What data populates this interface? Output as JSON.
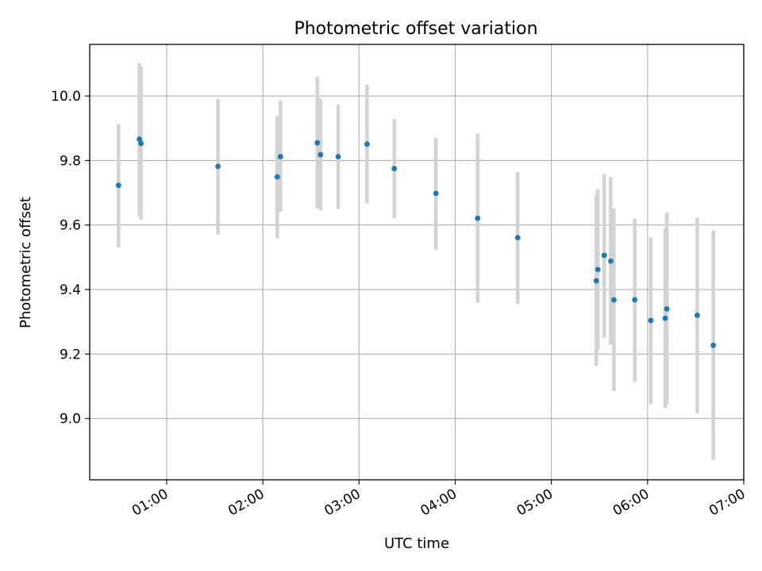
{
  "chart_data": {
    "type": "scatter",
    "title": "Photometric offset variation",
    "xlabel": "UTC time",
    "ylabel": "Photometric offset",
    "x_unit": "UTC hours",
    "xlim": [
      "00:12",
      "07:00"
    ],
    "ylim": [
      8.81,
      10.16
    ],
    "grid": true,
    "legend": "none",
    "x_ticks": [
      {
        "value": "01:00",
        "label": "01:00"
      },
      {
        "value": "02:00",
        "label": "02:00"
      },
      {
        "value": "03:00",
        "label": "03:00"
      },
      {
        "value": "04:00",
        "label": "04:00"
      },
      {
        "value": "05:00",
        "label": "05:00"
      },
      {
        "value": "06:00",
        "label": "06:00"
      },
      {
        "value": "07:00",
        "label": "07:00"
      }
    ],
    "y_ticks": [
      {
        "value": 9.0,
        "label": "9.0"
      },
      {
        "value": 9.2,
        "label": "9.2"
      },
      {
        "value": 9.4,
        "label": "9.4"
      },
      {
        "value": 9.6,
        "label": "9.6"
      },
      {
        "value": 9.8,
        "label": "9.8"
      },
      {
        "value": 10.0,
        "label": "10.0"
      }
    ],
    "colors": {
      "marker": "#1f77b4",
      "errorbar": "#d3d3d3",
      "grid": "#b0b0b0"
    },
    "points": [
      {
        "x": "00:30",
        "y": 9.723,
        "y_low": 9.531,
        "y_high": 9.913
      },
      {
        "x": "00:43",
        "y": 9.866,
        "y_low": 9.627,
        "y_high": 10.102
      },
      {
        "x": "00:44",
        "y": 9.853,
        "y_low": 9.617,
        "y_high": 10.092
      },
      {
        "x": "01:32",
        "y": 9.782,
        "y_low": 9.57,
        "y_high": 9.991
      },
      {
        "x": "02:09",
        "y": 9.749,
        "y_low": 9.559,
        "y_high": 9.938
      },
      {
        "x": "02:11",
        "y": 9.812,
        "y_low": 9.641,
        "y_high": 9.986
      },
      {
        "x": "02:34",
        "y": 9.855,
        "y_low": 9.652,
        "y_high": 10.06
      },
      {
        "x": "02:36",
        "y": 9.818,
        "y_low": 9.645,
        "y_high": 9.992
      },
      {
        "x": "02:47",
        "y": 9.812,
        "y_low": 9.65,
        "y_high": 9.975
      },
      {
        "x": "03:05",
        "y": 9.851,
        "y_low": 9.667,
        "y_high": 10.035
      },
      {
        "x": "03:22",
        "y": 9.775,
        "y_low": 9.621,
        "y_high": 9.929
      },
      {
        "x": "03:48",
        "y": 9.698,
        "y_low": 9.523,
        "y_high": 9.87
      },
      {
        "x": "04:14",
        "y": 9.621,
        "y_low": 9.36,
        "y_high": 9.883
      },
      {
        "x": "04:39",
        "y": 9.561,
        "y_low": 9.355,
        "y_high": 9.764
      },
      {
        "x": "05:28",
        "y": 9.427,
        "y_low": 9.163,
        "y_high": 9.694
      },
      {
        "x": "05:29",
        "y": 9.462,
        "y_low": 9.213,
        "y_high": 9.711
      },
      {
        "x": "05:33",
        "y": 9.506,
        "y_low": 9.25,
        "y_high": 9.759
      },
      {
        "x": "05:37",
        "y": 9.488,
        "y_low": 9.23,
        "y_high": 9.749
      },
      {
        "x": "05:39",
        "y": 9.368,
        "y_low": 9.085,
        "y_high": 9.651
      },
      {
        "x": "05:52",
        "y": 9.368,
        "y_low": 9.114,
        "y_high": 9.621
      },
      {
        "x": "06:02",
        "y": 9.304,
        "y_low": 9.045,
        "y_high": 9.562
      },
      {
        "x": "06:11",
        "y": 9.311,
        "y_low": 9.032,
        "y_high": 9.59
      },
      {
        "x": "06:12",
        "y": 9.34,
        "y_low": 9.043,
        "y_high": 9.638
      },
      {
        "x": "06:31",
        "y": 9.32,
        "y_low": 9.016,
        "y_high": 9.623
      },
      {
        "x": "06:41",
        "y": 9.227,
        "y_low": 8.872,
        "y_high": 9.583
      }
    ]
  }
}
